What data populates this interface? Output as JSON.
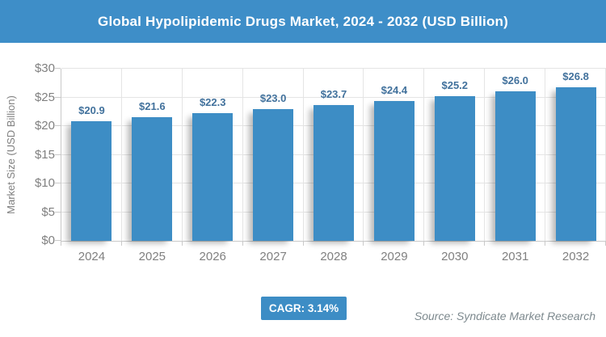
{
  "banner": {
    "title": "Global Hypolipidemic Drugs Market, 2024 - 2032 (USD Billion)",
    "bg_color": "#3E8EC8",
    "text_color": "#FFFFFF"
  },
  "chart_data": {
    "type": "bar",
    "title": "Global Hypolipidemic Drugs Market, 2024 - 2032 (USD Billion)",
    "categories": [
      "2024",
      "2025",
      "2026",
      "2027",
      "2028",
      "2029",
      "2030",
      "2031",
      "2032"
    ],
    "values": [
      20.9,
      21.6,
      22.3,
      23.0,
      23.7,
      24.4,
      25.2,
      26.0,
      26.8
    ],
    "value_labels": [
      "$20.9",
      "$21.6",
      "$22.3",
      "$23.0",
      "$23.7",
      "$24.4",
      "$25.2",
      "$26.0",
      "$26.8"
    ],
    "xlabel": "",
    "ylabel": "Market Size (USD Billion)",
    "ylim": [
      0,
      30
    ],
    "ytick_step": 5,
    "ytick_labels": [
      "$0",
      "$5",
      "$10",
      "$15",
      "$20",
      "$25",
      "$30"
    ],
    "grid": true,
    "legend": "none",
    "bar_color": "#3D8DC5",
    "value_label_color": "#41719C",
    "axis_text_color": "#808080"
  },
  "footer": {
    "cagr_label": "CAGR: 3.14%",
    "source": "Source: Syndicate Market Research"
  }
}
